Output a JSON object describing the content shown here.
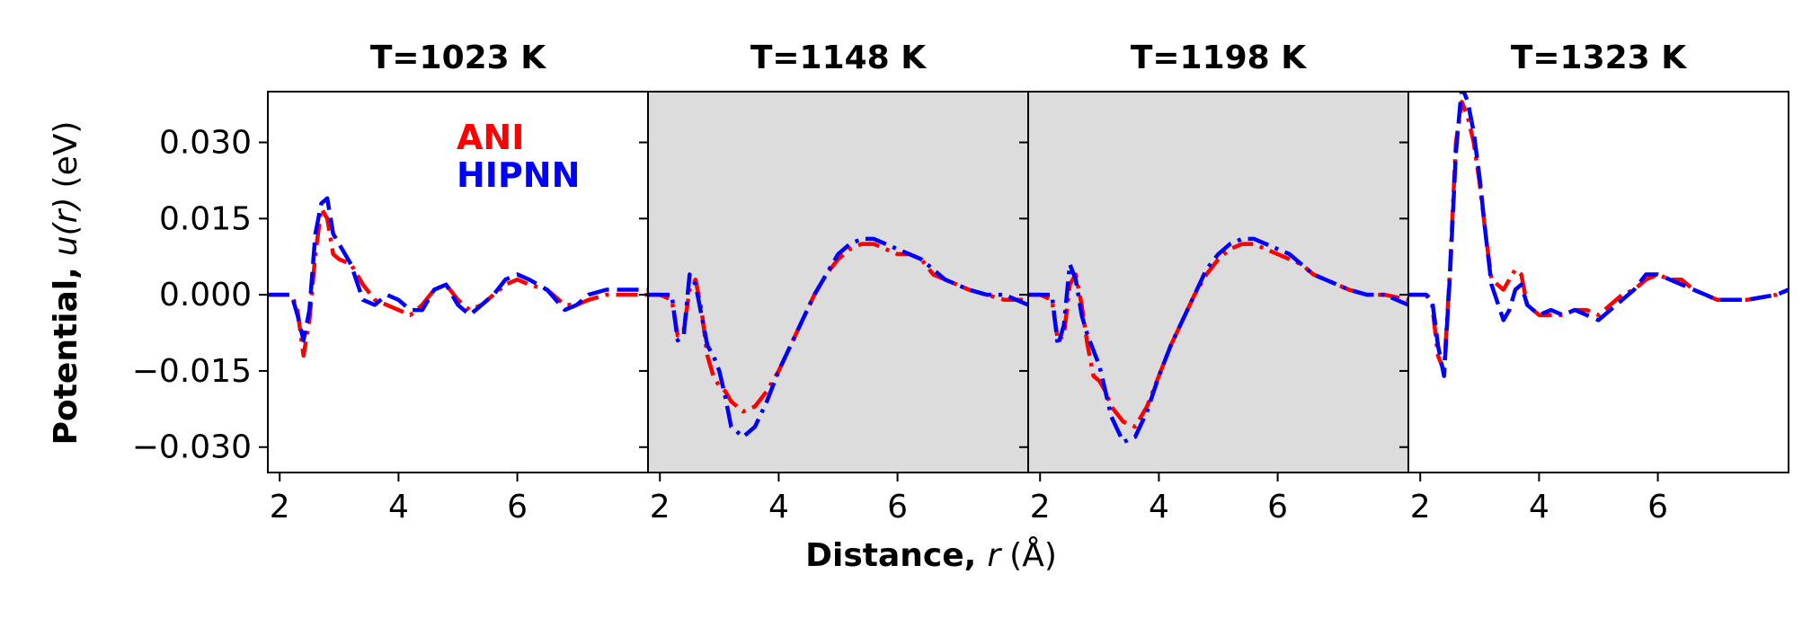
{
  "figure": {
    "xlabel_bold": "Distance,",
    "xlabel_var": "r",
    "xlabel_unit": "(Å)",
    "ylabel_bold": "Potential,",
    "ylabel_var": "u(r)",
    "ylabel_unit": "(eV)"
  },
  "colors": {
    "ANI": "#ff0000",
    "HIPNN": "#0000ff",
    "shade": "#dcdcdc"
  },
  "chart_data": [
    {
      "type": "line",
      "title": "T=1023 K",
      "shaded": false,
      "show_yticks": true,
      "show_legend": true,
      "xlim": [
        1.8,
        8.2
      ],
      "ylim": [
        -0.035,
        0.04
      ],
      "xticks": [
        2,
        4,
        6
      ],
      "yticks": [
        -0.03,
        -0.015,
        0.0,
        0.015,
        0.03
      ],
      "ytick_labels": [
        "−0.030",
        "−0.015",
        "0.000",
        "0.015",
        "0.030"
      ],
      "series": [
        {
          "name": "ANI",
          "dash": "dashdot",
          "x": [
            1.8,
            2.2,
            2.3,
            2.4,
            2.5,
            2.6,
            2.7,
            2.8,
            2.9,
            3.0,
            3.2,
            3.4,
            3.6,
            3.8,
            4.0,
            4.2,
            4.4,
            4.6,
            4.8,
            5.0,
            5.2,
            5.4,
            5.6,
            5.8,
            6.0,
            6.2,
            6.5,
            6.8,
            7.0,
            7.2,
            7.5,
            8.0,
            8.2
          ],
          "y": [
            0.0,
            0.0,
            -0.003,
            -0.012,
            -0.005,
            0.008,
            0.017,
            0.015,
            0.008,
            0.007,
            0.006,
            0.002,
            -0.001,
            -0.002,
            -0.003,
            -0.004,
            -0.002,
            0.001,
            0.002,
            -0.001,
            -0.003,
            -0.002,
            0.0,
            0.002,
            0.003,
            0.002,
            0.001,
            -0.002,
            -0.002,
            -0.001,
            0.0,
            0.0,
            0.0
          ]
        },
        {
          "name": "HIPNN",
          "dash": "dashed",
          "x": [
            1.8,
            2.2,
            2.3,
            2.4,
            2.5,
            2.6,
            2.7,
            2.8,
            2.9,
            3.0,
            3.2,
            3.4,
            3.6,
            3.8,
            4.0,
            4.2,
            4.4,
            4.6,
            4.8,
            5.0,
            5.2,
            5.4,
            5.6,
            5.8,
            6.0,
            6.2,
            6.5,
            6.8,
            7.0,
            7.2,
            7.5,
            8.0,
            8.2
          ],
          "y": [
            0.0,
            0.0,
            -0.004,
            -0.009,
            -0.003,
            0.012,
            0.018,
            0.019,
            0.012,
            0.01,
            0.006,
            -0.001,
            -0.002,
            0.0,
            -0.001,
            -0.003,
            -0.003,
            0.001,
            0.002,
            -0.002,
            -0.004,
            -0.002,
            0.0,
            0.003,
            0.004,
            0.003,
            0.001,
            -0.003,
            -0.002,
            0.0,
            0.001,
            0.001,
            0.001
          ]
        }
      ]
    },
    {
      "type": "line",
      "title": "T=1148 K",
      "shaded": true,
      "show_yticks": false,
      "show_legend": false,
      "xlim": [
        1.8,
        8.2
      ],
      "ylim": [
        -0.035,
        0.04
      ],
      "xticks": [
        2,
        4,
        6
      ],
      "yticks": [
        -0.03,
        -0.015,
        0.0,
        0.015,
        0.03
      ],
      "ytick_labels": [
        "−0.030",
        "−0.015",
        "0.000",
        "0.015",
        "0.030"
      ],
      "series": [
        {
          "name": "ANI",
          "dash": "dashdot",
          "x": [
            1.8,
            2.0,
            2.2,
            2.3,
            2.4,
            2.5,
            2.6,
            2.7,
            2.8,
            2.9,
            3.0,
            3.1,
            3.2,
            3.4,
            3.6,
            3.8,
            4.0,
            4.2,
            4.4,
            4.6,
            4.8,
            5.0,
            5.2,
            5.4,
            5.6,
            5.8,
            6.0,
            6.2,
            6.4,
            6.6,
            6.8,
            7.0,
            7.2,
            7.5,
            7.8,
            8.2
          ],
          "y": [
            0.0,
            0.0,
            -0.001,
            -0.008,
            -0.007,
            0.001,
            0.003,
            -0.003,
            -0.012,
            -0.016,
            -0.018,
            -0.019,
            -0.021,
            -0.023,
            -0.022,
            -0.019,
            -0.015,
            -0.01,
            -0.005,
            0.0,
            0.004,
            0.007,
            0.009,
            0.01,
            0.01,
            0.009,
            0.008,
            0.008,
            0.007,
            0.004,
            0.003,
            0.002,
            0.001,
            0.0,
            -0.001,
            -0.001
          ]
        },
        {
          "name": "HIPNN",
          "dash": "dashdot",
          "x": [
            1.8,
            2.0,
            2.2,
            2.3,
            2.4,
            2.5,
            2.6,
            2.7,
            2.8,
            2.9,
            3.0,
            3.1,
            3.2,
            3.4,
            3.6,
            3.8,
            4.0,
            4.2,
            4.4,
            4.6,
            4.8,
            5.0,
            5.2,
            5.4,
            5.6,
            5.8,
            6.0,
            6.2,
            6.4,
            6.6,
            6.8,
            7.0,
            7.2,
            7.5,
            7.8,
            8.2
          ],
          "y": [
            0.0,
            0.0,
            0.0,
            -0.009,
            -0.008,
            0.004,
            0.002,
            -0.004,
            -0.01,
            -0.012,
            -0.015,
            -0.02,
            -0.026,
            -0.028,
            -0.026,
            -0.021,
            -0.015,
            -0.01,
            -0.005,
            0.0,
            0.004,
            0.008,
            0.01,
            0.011,
            0.011,
            0.01,
            0.009,
            0.008,
            0.007,
            0.005,
            0.003,
            0.002,
            0.001,
            0.0,
            0.0,
            -0.002
          ]
        }
      ]
    },
    {
      "type": "line",
      "title": "T=1198 K",
      "shaded": true,
      "show_yticks": false,
      "show_legend": false,
      "xlim": [
        1.8,
        8.2
      ],
      "ylim": [
        -0.035,
        0.04
      ],
      "xticks": [
        2,
        4,
        6
      ],
      "yticks": [
        -0.03,
        -0.015,
        0.0,
        0.015,
        0.03
      ],
      "ytick_labels": [
        "−0.030",
        "−0.015",
        "0.000",
        "0.015",
        "0.030"
      ],
      "series": [
        {
          "name": "ANI",
          "dash": "dashdot",
          "x": [
            1.8,
            2.0,
            2.2,
            2.3,
            2.4,
            2.5,
            2.6,
            2.7,
            2.8,
            2.9,
            3.0,
            3.1,
            3.2,
            3.4,
            3.6,
            3.8,
            4.0,
            4.2,
            4.4,
            4.6,
            4.8,
            5.0,
            5.2,
            5.4,
            5.6,
            5.8,
            6.0,
            6.2,
            6.4,
            6.6,
            6.8,
            7.0,
            7.2,
            7.5,
            7.8,
            8.2
          ],
          "y": [
            0.0,
            0.0,
            -0.001,
            -0.009,
            -0.008,
            0.002,
            0.004,
            -0.002,
            -0.01,
            -0.016,
            -0.017,
            -0.019,
            -0.022,
            -0.025,
            -0.026,
            -0.022,
            -0.016,
            -0.01,
            -0.005,
            0.0,
            0.004,
            0.007,
            0.009,
            0.01,
            0.01,
            0.009,
            0.008,
            0.007,
            0.006,
            0.004,
            0.003,
            0.002,
            0.001,
            0.0,
            0.0,
            -0.001
          ]
        },
        {
          "name": "HIPNN",
          "dash": "dashdot",
          "x": [
            1.8,
            2.0,
            2.2,
            2.3,
            2.4,
            2.5,
            2.6,
            2.7,
            2.8,
            2.9,
            3.0,
            3.1,
            3.2,
            3.4,
            3.6,
            3.8,
            4.0,
            4.2,
            4.4,
            4.6,
            4.8,
            5.0,
            5.2,
            5.4,
            5.6,
            5.8,
            6.0,
            6.2,
            6.4,
            6.6,
            6.8,
            7.0,
            7.2,
            7.5,
            7.8,
            8.2
          ],
          "y": [
            0.0,
            0.0,
            0.0,
            -0.01,
            -0.006,
            0.006,
            0.003,
            -0.004,
            -0.008,
            -0.011,
            -0.014,
            -0.019,
            -0.024,
            -0.029,
            -0.028,
            -0.023,
            -0.016,
            -0.01,
            -0.005,
            0.0,
            0.005,
            0.008,
            0.01,
            0.011,
            0.011,
            0.01,
            0.009,
            0.008,
            0.006,
            0.004,
            0.003,
            0.002,
            0.001,
            0.0,
            0.0,
            -0.002
          ]
        }
      ]
    },
    {
      "type": "line",
      "title": "T=1323 K",
      "shaded": false,
      "show_yticks": false,
      "show_legend": false,
      "xlim": [
        1.8,
        8.2
      ],
      "ylim": [
        -0.035,
        0.04
      ],
      "xticks": [
        2,
        4,
        6
      ],
      "yticks": [
        -0.03,
        -0.015,
        0.0,
        0.015,
        0.03
      ],
      "ytick_labels": [
        "−0.030",
        "−0.015",
        "0.000",
        "0.015",
        "0.030"
      ],
      "series": [
        {
          "name": "ANI",
          "dash": "dashdot",
          "x": [
            1.8,
            2.1,
            2.2,
            2.3,
            2.4,
            2.5,
            2.6,
            2.7,
            2.8,
            2.9,
            3.0,
            3.1,
            3.2,
            3.4,
            3.5,
            3.6,
            3.7,
            3.8,
            4.0,
            4.2,
            4.4,
            4.6,
            4.8,
            5.0,
            5.2,
            5.4,
            5.6,
            5.8,
            6.0,
            6.2,
            6.4,
            6.6,
            6.8,
            7.0,
            7.5,
            8.0,
            8.2
          ],
          "y": [
            0.0,
            0.0,
            -0.002,
            -0.012,
            -0.015,
            0.005,
            0.03,
            0.038,
            0.035,
            0.03,
            0.022,
            0.012,
            0.003,
            0.001,
            0.003,
            0.005,
            0.004,
            -0.002,
            -0.004,
            -0.004,
            -0.004,
            -0.003,
            -0.003,
            -0.004,
            -0.002,
            0.0,
            0.001,
            0.003,
            0.004,
            0.003,
            0.003,
            0.001,
            0.0,
            -0.001,
            -0.001,
            0.0,
            0.001
          ]
        },
        {
          "name": "HIPNN",
          "dash": "dashed",
          "x": [
            1.8,
            2.1,
            2.2,
            2.3,
            2.4,
            2.5,
            2.6,
            2.7,
            2.8,
            2.9,
            3.0,
            3.1,
            3.2,
            3.4,
            3.5,
            3.6,
            3.7,
            3.8,
            4.0,
            4.2,
            4.4,
            4.6,
            4.8,
            5.0,
            5.2,
            5.4,
            5.6,
            5.8,
            6.0,
            6.2,
            6.4,
            6.6,
            6.8,
            7.0,
            7.5,
            8.0,
            8.2
          ],
          "y": [
            0.0,
            0.0,
            -0.001,
            -0.01,
            -0.016,
            0.004,
            0.028,
            0.041,
            0.038,
            0.032,
            0.023,
            0.012,
            0.002,
            -0.005,
            -0.003,
            0.001,
            0.002,
            -0.002,
            -0.004,
            -0.003,
            -0.004,
            -0.003,
            -0.004,
            -0.005,
            -0.003,
            -0.001,
            0.001,
            0.004,
            0.004,
            0.003,
            0.002,
            0.001,
            0.0,
            -0.001,
            -0.001,
            0.0,
            0.001
          ]
        }
      ]
    }
  ]
}
